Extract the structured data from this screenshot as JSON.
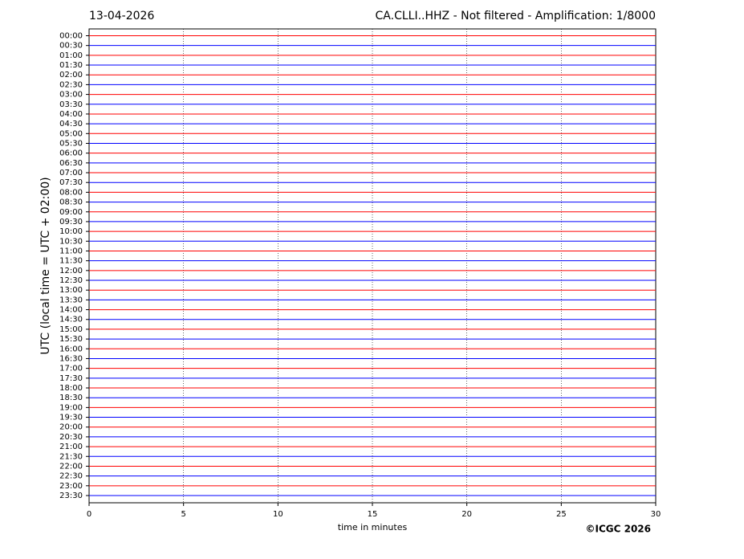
{
  "chart_data": {
    "type": "helicorder",
    "title_left": "13-04-2026",
    "title_right": "CA.CLLI..HHZ - Not filtered - Amplification: 1/8000",
    "xlabel": "time in minutes",
    "ylabel": "UTC (local time = UTC + 02:00)",
    "credit": "©ICGC 2026",
    "categories": [
      "00:00",
      "00:30",
      "01:00",
      "01:30",
      "02:00",
      "02:30",
      "03:00",
      "03:30",
      "04:00",
      "04:30",
      "05:00",
      "05:30",
      "06:00",
      "06:30",
      "07:00",
      "07:30",
      "08:00",
      "08:30",
      "09:00",
      "09:30",
      "10:00",
      "10:30",
      "11:00",
      "11:30",
      "12:00",
      "12:30",
      "13:00",
      "13:30",
      "14:00",
      "14:30",
      "15:00",
      "15:30",
      "16:00",
      "16:30",
      "17:00",
      "17:30",
      "18:00",
      "18:30",
      "19:00",
      "19:30",
      "20:00",
      "20:30",
      "21:00",
      "21:30",
      "22:00",
      "22:30",
      "23:00",
      "23:30"
    ],
    "trace_colors": [
      "#ff0000",
      "#0000ff"
    ],
    "xlim": [
      0,
      30
    ],
    "xticks": [
      0,
      5,
      10,
      15,
      20,
      25,
      30
    ],
    "grid": true
  }
}
